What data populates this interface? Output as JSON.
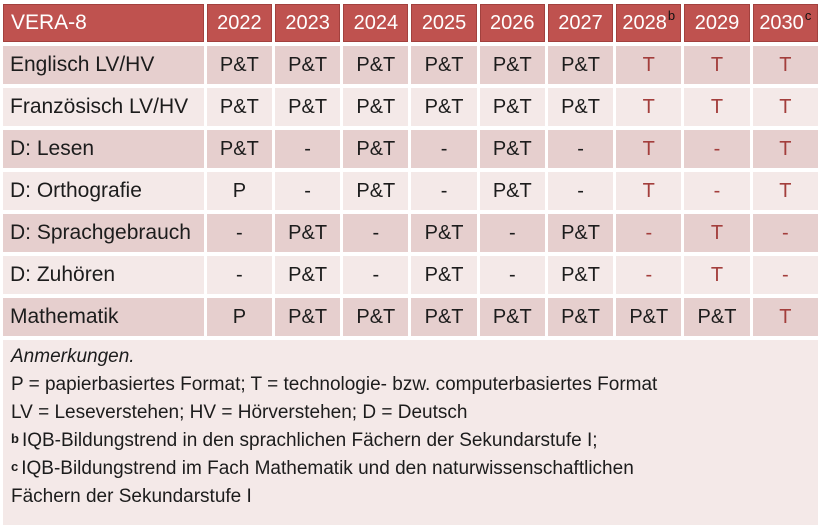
{
  "colors": {
    "header_bg": "#bf524f",
    "header_border": "#a2413e",
    "band_dark": "#e6cfce",
    "band_light": "#f4e9e8",
    "notes_bg": "#f4e9e8",
    "accent_red": "#a33e3c",
    "text_dark": "#1c1c1c",
    "header_text": "#ffffff",
    "page_bg": "#ffffff"
  },
  "table": {
    "title": "VERA-8",
    "columns": [
      {
        "label": "2022",
        "sup": ""
      },
      {
        "label": "2023",
        "sup": ""
      },
      {
        "label": "2024",
        "sup": ""
      },
      {
        "label": "2025",
        "sup": ""
      },
      {
        "label": "2026",
        "sup": ""
      },
      {
        "label": "2027",
        "sup": ""
      },
      {
        "label": "2028",
        "sup": "b"
      },
      {
        "label": "2029",
        "sup": ""
      },
      {
        "label": "2030",
        "sup": "c"
      }
    ],
    "rows": [
      {
        "label": "Englisch LV/HV",
        "cells": [
          {
            "t": "P&T",
            "red": false
          },
          {
            "t": "P&T",
            "red": false
          },
          {
            "t": "P&T",
            "red": false
          },
          {
            "t": "P&T",
            "red": false
          },
          {
            "t": "P&T",
            "red": false
          },
          {
            "t": "P&T",
            "red": false
          },
          {
            "t": "T",
            "red": true
          },
          {
            "t": "T",
            "red": true
          },
          {
            "t": "T",
            "red": true
          }
        ]
      },
      {
        "label": "Französisch LV/HV",
        "cells": [
          {
            "t": "P&T",
            "red": false
          },
          {
            "t": "P&T",
            "red": false
          },
          {
            "t": "P&T",
            "red": false
          },
          {
            "t": "P&T",
            "red": false
          },
          {
            "t": "P&T",
            "red": false
          },
          {
            "t": "P&T",
            "red": false
          },
          {
            "t": "T",
            "red": true
          },
          {
            "t": "T",
            "red": true
          },
          {
            "t": "T",
            "red": true
          }
        ]
      },
      {
        "label": "D: Lesen",
        "cells": [
          {
            "t": "P&T",
            "red": false
          },
          {
            "t": "-",
            "red": false
          },
          {
            "t": "P&T",
            "red": false
          },
          {
            "t": "-",
            "red": false
          },
          {
            "t": "P&T",
            "red": false
          },
          {
            "t": "-",
            "red": false
          },
          {
            "t": "T",
            "red": true
          },
          {
            "t": "-",
            "red": true
          },
          {
            "t": "T",
            "red": true
          }
        ]
      },
      {
        "label": "D: Orthografie",
        "cells": [
          {
            "t": "P",
            "red": false
          },
          {
            "t": "-",
            "red": false
          },
          {
            "t": "P&T",
            "red": false
          },
          {
            "t": "-",
            "red": false
          },
          {
            "t": "P&T",
            "red": false
          },
          {
            "t": "-",
            "red": false
          },
          {
            "t": "T",
            "red": true
          },
          {
            "t": "-",
            "red": true
          },
          {
            "t": "T",
            "red": true
          }
        ]
      },
      {
        "label": "D: Sprachgebrauch",
        "cells": [
          {
            "t": "-",
            "red": false
          },
          {
            "t": "P&T",
            "red": false
          },
          {
            "t": "-",
            "red": false
          },
          {
            "t": "P&T",
            "red": false
          },
          {
            "t": "-",
            "red": false
          },
          {
            "t": "P&T",
            "red": false
          },
          {
            "t": "-",
            "red": true
          },
          {
            "t": "T",
            "red": true
          },
          {
            "t": "-",
            "red": true
          }
        ]
      },
      {
        "label": "D: Zuhören",
        "cells": [
          {
            "t": "-",
            "red": false
          },
          {
            "t": "P&T",
            "red": false
          },
          {
            "t": "-",
            "red": false
          },
          {
            "t": "P&T",
            "red": false
          },
          {
            "t": "-",
            "red": false
          },
          {
            "t": "P&T",
            "red": false
          },
          {
            "t": "-",
            "red": true
          },
          {
            "t": "T",
            "red": true
          },
          {
            "t": "-",
            "red": true
          }
        ]
      },
      {
        "label": "Mathematik",
        "cells": [
          {
            "t": "P",
            "red": false
          },
          {
            "t": "P&T",
            "red": false
          },
          {
            "t": "P&T",
            "red": false
          },
          {
            "t": "P&T",
            "red": false
          },
          {
            "t": "P&T",
            "red": false
          },
          {
            "t": "P&T",
            "red": false
          },
          {
            "t": "P&T",
            "red": false
          },
          {
            "t": "P&T",
            "red": false
          },
          {
            "t": "T",
            "red": true
          }
        ]
      }
    ]
  },
  "notes": {
    "lines": [
      {
        "marker": "",
        "text": "Anmerkungen.",
        "italic": true
      },
      {
        "marker": "",
        "text": "P = papierbasiertes Format; T = technologie- bzw. computerbasiertes Format",
        "italic": false
      },
      {
        "marker": "",
        "text": "LV = Leseverstehen; HV = Hörverstehen; D = Deutsch",
        "italic": false
      },
      {
        "marker": "b",
        "text": "IQB-Bildungstrend in den sprachlichen Fächern der Sekundarstufe I;",
        "italic": false
      },
      {
        "marker": "c",
        "text": "IQB-Bildungstrend im Fach Mathematik und den naturwissenschaftlichen",
        "italic": false
      },
      {
        "marker": "",
        "text": "Fächern der Sekundarstufe I",
        "italic": false
      }
    ]
  }
}
